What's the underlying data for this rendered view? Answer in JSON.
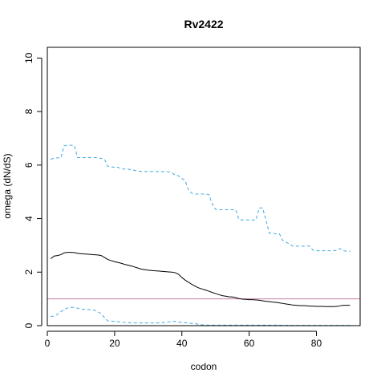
{
  "chart_data": {
    "type": "line",
    "title": "Rv2422",
    "xlabel": "codon",
    "ylabel": "omega (dN/dS)",
    "xlim": [
      0,
      93
    ],
    "ylim": [
      0,
      10.4
    ],
    "x_ticks": [
      0,
      20,
      40,
      60,
      80
    ],
    "y_ticks": [
      0,
      2,
      4,
      6,
      8,
      10
    ],
    "grid": false,
    "reference_line": {
      "y": 1,
      "color": "#cc79a7"
    },
    "colors": {
      "estimate": "#000000",
      "bounds": "#3fa9e0"
    },
    "series": [
      {
        "role": "estimate",
        "style": "solid",
        "points": [
          [
            1,
            2.5
          ],
          [
            2,
            2.6
          ],
          [
            3,
            2.62
          ],
          [
            4,
            2.65
          ],
          [
            5,
            2.72
          ],
          [
            6,
            2.74
          ],
          [
            7,
            2.74
          ],
          [
            8,
            2.73
          ],
          [
            9,
            2.7
          ],
          [
            10,
            2.69
          ],
          [
            11,
            2.68
          ],
          [
            12,
            2.67
          ],
          [
            13,
            2.66
          ],
          [
            14,
            2.65
          ],
          [
            15,
            2.64
          ],
          [
            16,
            2.62
          ],
          [
            17,
            2.55
          ],
          [
            18,
            2.47
          ],
          [
            19,
            2.43
          ],
          [
            20,
            2.39
          ],
          [
            21,
            2.36
          ],
          [
            22,
            2.33
          ],
          [
            23,
            2.29
          ],
          [
            24,
            2.26
          ],
          [
            25,
            2.23
          ],
          [
            26,
            2.19
          ],
          [
            27,
            2.15
          ],
          [
            28,
            2.11
          ],
          [
            29,
            2.09
          ],
          [
            30,
            2.07
          ],
          [
            31,
            2.06
          ],
          [
            32,
            2.05
          ],
          [
            33,
            2.04
          ],
          [
            34,
            2.03
          ],
          [
            35,
            2.02
          ],
          [
            36,
            2.01
          ],
          [
            37,
            2.0
          ],
          [
            38,
            1.98
          ],
          [
            39,
            1.92
          ],
          [
            40,
            1.8
          ],
          [
            41,
            1.7
          ],
          [
            42,
            1.62
          ],
          [
            43,
            1.54
          ],
          [
            44,
            1.47
          ],
          [
            45,
            1.41
          ],
          [
            46,
            1.37
          ],
          [
            47,
            1.33
          ],
          [
            48,
            1.29
          ],
          [
            49,
            1.24
          ],
          [
            50,
            1.2
          ],
          [
            51,
            1.16
          ],
          [
            52,
            1.12
          ],
          [
            53,
            1.1
          ],
          [
            54,
            1.08
          ],
          [
            55,
            1.07
          ],
          [
            56,
            1.05
          ],
          [
            57,
            1.01
          ],
          [
            58,
            0.99
          ],
          [
            59,
            0.98
          ],
          [
            60,
            0.97
          ],
          [
            61,
            0.97
          ],
          [
            62,
            0.96
          ],
          [
            63,
            0.95
          ],
          [
            64,
            0.93
          ],
          [
            65,
            0.91
          ],
          [
            66,
            0.9
          ],
          [
            67,
            0.88
          ],
          [
            68,
            0.87
          ],
          [
            69,
            0.85
          ],
          [
            70,
            0.83
          ],
          [
            71,
            0.81
          ],
          [
            72,
            0.79
          ],
          [
            73,
            0.77
          ],
          [
            74,
            0.76
          ],
          [
            75,
            0.75
          ],
          [
            76,
            0.75
          ],
          [
            77,
            0.74
          ],
          [
            78,
            0.73
          ],
          [
            79,
            0.73
          ],
          [
            80,
            0.72
          ],
          [
            81,
            0.72
          ],
          [
            82,
            0.72
          ],
          [
            83,
            0.71
          ],
          [
            84,
            0.71
          ],
          [
            85,
            0.71
          ],
          [
            86,
            0.72
          ],
          [
            87,
            0.74
          ],
          [
            88,
            0.76
          ],
          [
            89,
            0.76
          ],
          [
            90,
            0.76
          ]
        ]
      },
      {
        "role": "upper-bound",
        "style": "dashed",
        "points": [
          [
            1,
            6.22
          ],
          [
            2,
            6.25
          ],
          [
            3,
            6.27
          ],
          [
            4,
            6.27
          ],
          [
            5,
            6.72
          ],
          [
            6,
            6.74
          ],
          [
            7,
            6.74
          ],
          [
            8,
            6.74
          ],
          [
            9,
            6.28
          ],
          [
            10,
            6.28
          ],
          [
            11,
            6.28
          ],
          [
            12,
            6.28
          ],
          [
            13,
            6.28
          ],
          [
            14,
            6.28
          ],
          [
            15,
            6.27
          ],
          [
            16,
            6.25
          ],
          [
            17,
            6.22
          ],
          [
            18,
            5.95
          ],
          [
            19,
            5.93
          ],
          [
            20,
            5.92
          ],
          [
            21,
            5.92
          ],
          [
            22,
            5.85
          ],
          [
            23,
            5.85
          ],
          [
            24,
            5.85
          ],
          [
            25,
            5.82
          ],
          [
            26,
            5.8
          ],
          [
            27,
            5.78
          ],
          [
            28,
            5.76
          ],
          [
            29,
            5.76
          ],
          [
            30,
            5.76
          ],
          [
            31,
            5.76
          ],
          [
            32,
            5.76
          ],
          [
            33,
            5.76
          ],
          [
            34,
            5.76
          ],
          [
            35,
            5.75
          ],
          [
            36,
            5.75
          ],
          [
            37,
            5.72
          ],
          [
            38,
            5.62
          ],
          [
            39,
            5.6
          ],
          [
            40,
            5.5
          ],
          [
            41,
            5.42
          ],
          [
            42,
            5.05
          ],
          [
            43,
            4.95
          ],
          [
            44,
            4.92
          ],
          [
            45,
            4.92
          ],
          [
            46,
            4.92
          ],
          [
            47,
            4.92
          ],
          [
            48,
            4.9
          ],
          [
            49,
            4.55
          ],
          [
            50,
            4.35
          ],
          [
            51,
            4.33
          ],
          [
            52,
            4.33
          ],
          [
            53,
            4.33
          ],
          [
            54,
            4.33
          ],
          [
            55,
            4.33
          ],
          [
            56,
            4.33
          ],
          [
            57,
            3.96
          ],
          [
            58,
            3.95
          ],
          [
            59,
            3.95
          ],
          [
            60,
            3.95
          ],
          [
            61,
            3.95
          ],
          [
            62,
            3.95
          ],
          [
            63,
            4.4
          ],
          [
            64,
            4.4
          ],
          [
            65,
            3.95
          ],
          [
            66,
            3.45
          ],
          [
            67,
            3.45
          ],
          [
            68,
            3.43
          ],
          [
            69,
            3.43
          ],
          [
            70,
            3.18
          ],
          [
            71,
            3.12
          ],
          [
            72,
            3.05
          ],
          [
            73,
            2.97
          ],
          [
            74,
            2.97
          ],
          [
            75,
            2.97
          ],
          [
            76,
            2.97
          ],
          [
            77,
            2.97
          ],
          [
            78,
            2.97
          ],
          [
            79,
            2.82
          ],
          [
            80,
            2.8
          ],
          [
            81,
            2.8
          ],
          [
            82,
            2.8
          ],
          [
            83,
            2.8
          ],
          [
            84,
            2.8
          ],
          [
            85,
            2.8
          ],
          [
            86,
            2.82
          ],
          [
            87,
            2.88
          ],
          [
            88,
            2.8
          ],
          [
            89,
            2.78
          ],
          [
            90,
            2.78
          ]
        ]
      },
      {
        "role": "lower-bound",
        "style": "dashed",
        "points": [
          [
            1,
            0.35
          ],
          [
            2,
            0.35
          ],
          [
            3,
            0.42
          ],
          [
            4,
            0.52
          ],
          [
            5,
            0.6
          ],
          [
            6,
            0.66
          ],
          [
            7,
            0.68
          ],
          [
            8,
            0.68
          ],
          [
            9,
            0.65
          ],
          [
            10,
            0.62
          ],
          [
            11,
            0.61
          ],
          [
            12,
            0.6
          ],
          [
            13,
            0.6
          ],
          [
            14,
            0.58
          ],
          [
            15,
            0.52
          ],
          [
            16,
            0.45
          ],
          [
            17,
            0.3
          ],
          [
            18,
            0.18
          ],
          [
            19,
            0.17
          ],
          [
            20,
            0.16
          ],
          [
            21,
            0.15
          ],
          [
            22,
            0.14
          ],
          [
            23,
            0.12
          ],
          [
            24,
            0.11
          ],
          [
            25,
            0.1
          ],
          [
            26,
            0.1
          ],
          [
            27,
            0.1
          ],
          [
            28,
            0.1
          ],
          [
            29,
            0.1
          ],
          [
            30,
            0.1
          ],
          [
            31,
            0.1
          ],
          [
            32,
            0.1
          ],
          [
            33,
            0.1
          ],
          [
            34,
            0.11
          ],
          [
            35,
            0.12
          ],
          [
            36,
            0.14
          ],
          [
            37,
            0.15
          ],
          [
            38,
            0.16
          ],
          [
            39,
            0.14
          ],
          [
            40,
            0.12
          ],
          [
            41,
            0.11
          ],
          [
            42,
            0.1
          ],
          [
            43,
            0.08
          ],
          [
            44,
            0.07
          ],
          [
            45,
            0.05
          ],
          [
            46,
            0.03
          ],
          [
            47,
            0.02
          ],
          [
            48,
            0.02
          ],
          [
            49,
            0.02
          ],
          [
            50,
            0.02
          ],
          [
            51,
            0.02
          ],
          [
            52,
            0.02
          ],
          [
            53,
            0.02
          ],
          [
            54,
            0.02
          ],
          [
            55,
            0.02
          ],
          [
            56,
            0.02
          ],
          [
            57,
            0.02
          ],
          [
            58,
            0.02
          ],
          [
            59,
            0.02
          ],
          [
            60,
            0.02
          ],
          [
            61,
            0.02
          ],
          [
            62,
            0.02
          ],
          [
            63,
            0.02
          ],
          [
            64,
            0.02
          ],
          [
            65,
            0.02
          ],
          [
            66,
            0.02
          ],
          [
            67,
            0.02
          ],
          [
            68,
            0.02
          ],
          [
            69,
            0.02
          ],
          [
            70,
            0.01
          ],
          [
            71,
            0.01
          ],
          [
            72,
            0.01
          ],
          [
            73,
            0.01
          ],
          [
            74,
            0.01
          ],
          [
            75,
            0.01
          ],
          [
            76,
            0.01
          ],
          [
            77,
            0.01
          ],
          [
            78,
            0.01
          ],
          [
            79,
            0.01
          ],
          [
            80,
            0.01
          ],
          [
            81,
            0.01
          ],
          [
            82,
            0.01
          ],
          [
            83,
            0.01
          ],
          [
            84,
            0.01
          ],
          [
            85,
            0.01
          ],
          [
            86,
            0.01
          ],
          [
            87,
            0.01
          ],
          [
            88,
            0.01
          ],
          [
            89,
            0.01
          ],
          [
            90,
            0.01
          ]
        ]
      }
    ]
  }
}
